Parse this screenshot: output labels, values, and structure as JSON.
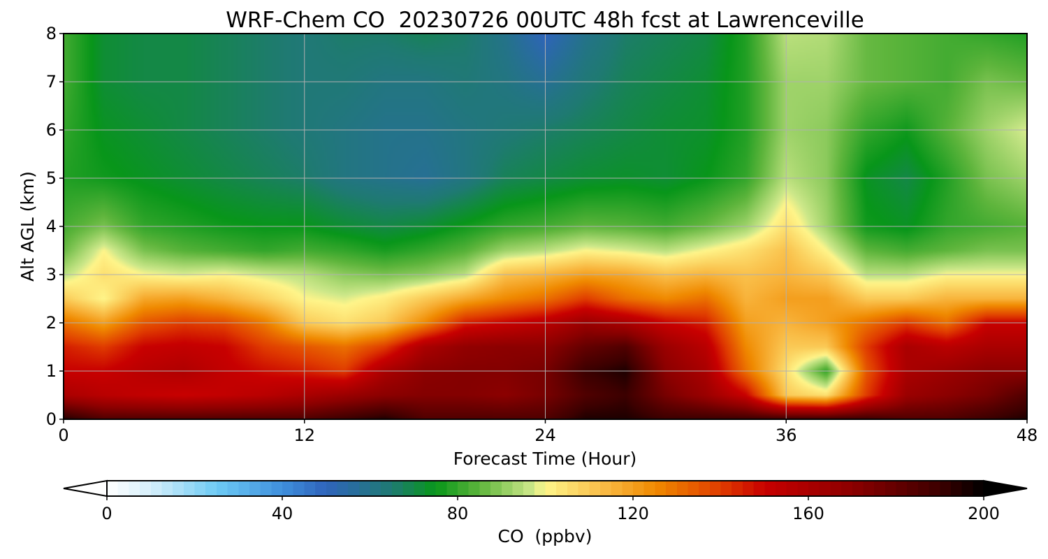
{
  "chart_data": {
    "type": "heatmap",
    "title": "WRF-Chem CO  20230726 00UTC 48h fcst at Lawrenceville",
    "xlabel": "Forecast Time (Hour)",
    "ylabel": "Alt AGL (km)",
    "xlim": [
      0,
      48
    ],
    "ylim": [
      0,
      8
    ],
    "x_ticks": [
      "0",
      "12",
      "24",
      "36",
      "48"
    ],
    "y_ticks": [
      "0",
      "1",
      "2",
      "3",
      "4",
      "5",
      "6",
      "7",
      "8"
    ],
    "grid": true,
    "colorbar": {
      "label": "CO  (ppbv)",
      "ticks": [
        "0",
        "40",
        "80",
        "120",
        "160",
        "200"
      ],
      "range": [
        0,
        200
      ],
      "extend": "both",
      "orientation": "horizontal",
      "stops": [
        {
          "value": 0,
          "color": "#ffffff"
        },
        {
          "value": 10,
          "color": "#d6effa"
        },
        {
          "value": 25,
          "color": "#6ecbf5"
        },
        {
          "value": 40,
          "color": "#3f8fdc"
        },
        {
          "value": 50,
          "color": "#2f64bb"
        },
        {
          "value": 65,
          "color": "#1f7a72"
        },
        {
          "value": 75,
          "color": "#08961a"
        },
        {
          "value": 85,
          "color": "#5eb53c"
        },
        {
          "value": 97,
          "color": "#cde88a"
        },
        {
          "value": 100,
          "color": "#fff58a"
        },
        {
          "value": 115,
          "color": "#f8b43c"
        },
        {
          "value": 125,
          "color": "#f08a00"
        },
        {
          "value": 140,
          "color": "#e03c00"
        },
        {
          "value": 150,
          "color": "#c80000"
        },
        {
          "value": 170,
          "color": "#8c0000"
        },
        {
          "value": 190,
          "color": "#3c0000"
        },
        {
          "value": 200,
          "color": "#000000"
        }
      ]
    },
    "x": [
      0,
      2,
      4,
      6,
      8,
      10,
      12,
      14,
      16,
      18,
      20,
      22,
      24,
      26,
      28,
      30,
      32,
      34,
      36,
      38,
      40,
      42,
      44,
      46,
      48
    ],
    "y": [
      0,
      0.5,
      1,
      1.5,
      2,
      2.5,
      3,
      3.5,
      4,
      5,
      6,
      7,
      8
    ],
    "z": [
      [
        195,
        185,
        185,
        185,
        185,
        185,
        185,
        190,
        195,
        185,
        185,
        185,
        185,
        195,
        195,
        190,
        190,
        190,
        190,
        190,
        190,
        185,
        185,
        190,
        195
      ],
      [
        160,
        155,
        152,
        150,
        152,
        155,
        160,
        165,
        170,
        172,
        172,
        170,
        175,
        185,
        190,
        175,
        165,
        150,
        110,
        105,
        140,
        165,
        170,
        175,
        185
      ],
      [
        150,
        150,
        155,
        158,
        152,
        148,
        145,
        140,
        160,
        170,
        172,
        172,
        175,
        190,
        195,
        170,
        160,
        130,
        105,
        80,
        135,
        160,
        165,
        170,
        170
      ],
      [
        145,
        140,
        150,
        152,
        150,
        140,
        135,
        130,
        140,
        160,
        168,
        170,
        170,
        180,
        185,
        165,
        155,
        125,
        110,
        110,
        140,
        160,
        155,
        160,
        160
      ],
      [
        130,
        120,
        135,
        140,
        138,
        128,
        110,
        105,
        110,
        125,
        145,
        150,
        155,
        165,
        160,
        150,
        145,
        120,
        115,
        120,
        130,
        140,
        130,
        150,
        150
      ],
      [
        110,
        100,
        118,
        120,
        115,
        108,
        100,
        98,
        102,
        110,
        118,
        125,
        130,
        140,
        130,
        125,
        130,
        115,
        120,
        120,
        110,
        110,
        115,
        115,
        115
      ],
      [
        95,
        105,
        100,
        98,
        100,
        97,
        95,
        90,
        88,
        90,
        95,
        112,
        115,
        120,
        118,
        112,
        115,
        112,
        115,
        110,
        95,
        95,
        100,
        100,
        100
      ],
      [
        86,
        100,
        88,
        84,
        82,
        80,
        82,
        80,
        77,
        80,
        84,
        92,
        95,
        100,
        98,
        95,
        100,
        105,
        112,
        100,
        85,
        82,
        85,
        88,
        88
      ],
      [
        82,
        88,
        80,
        78,
        76,
        75,
        75,
        72,
        70,
        72,
        76,
        80,
        82,
        85,
        84,
        82,
        86,
        92,
        105,
        92,
        76,
        74,
        80,
        82,
        84
      ],
      [
        78,
        76,
        74,
        72,
        70,
        68,
        66,
        62,
        60,
        58,
        62,
        68,
        70,
        72,
        73,
        72,
        75,
        80,
        95,
        90,
        74,
        70,
        78,
        88,
        92
      ],
      [
        80,
        74,
        72,
        70,
        68,
        66,
        64,
        62,
        60,
        60,
        62,
        64,
        66,
        68,
        70,
        72,
        73,
        78,
        92,
        90,
        80,
        76,
        84,
        92,
        98
      ],
      [
        82,
        72,
        70,
        70,
        68,
        66,
        64,
        64,
        62,
        62,
        64,
        62,
        58,
        64,
        68,
        70,
        72,
        78,
        92,
        92,
        86,
        84,
        82,
        88,
        86
      ],
      [
        82,
        72,
        70,
        70,
        68,
        66,
        64,
        66,
        66,
        68,
        66,
        60,
        50,
        60,
        66,
        68,
        70,
        78,
        95,
        94,
        86,
        84,
        82,
        80,
        78
      ]
    ]
  }
}
